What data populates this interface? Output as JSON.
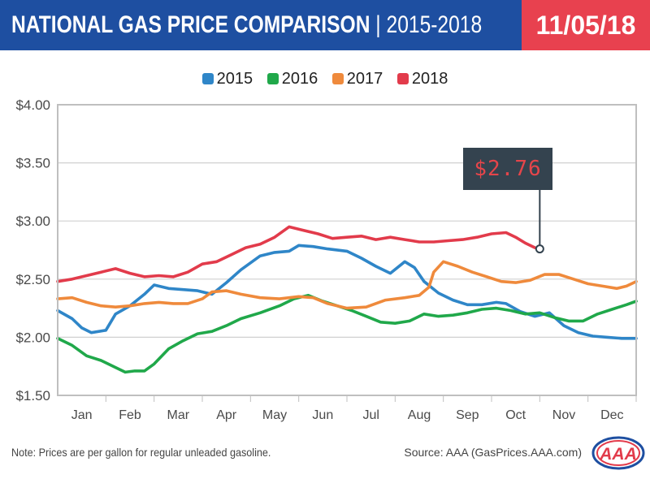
{
  "header": {
    "title_bold": "NATIONAL GAS PRICE COMPARISON",
    "title_sep": " | ",
    "title_years": "2015-2018",
    "date": "11/05/18",
    "colors": {
      "left": "#1e4fa1",
      "right": "#e8414f"
    }
  },
  "legend": {
    "items": [
      {
        "label": "2015",
        "color": "#2f86c8"
      },
      {
        "label": "2016",
        "color": "#20a84a"
      },
      {
        "label": "2017",
        "color": "#ef8a3c"
      },
      {
        "label": "2018",
        "color": "#e23b4b"
      }
    ]
  },
  "chart_data": {
    "type": "line",
    "title": "NATIONAL GAS PRICE COMPARISON | 2015-2018",
    "xlabel": "",
    "ylabel": "",
    "x_ticks": [
      "Jan",
      "Feb",
      "Mar",
      "Apr",
      "May",
      "Jun",
      "Jul",
      "Aug",
      "Sep",
      "Oct",
      "Nov",
      "Dec"
    ],
    "y_ticks": [
      "$1.50",
      "$2.00",
      "$2.50",
      "$3.00",
      "$3.50",
      "$4.00"
    ],
    "ylim": [
      1.5,
      4.0
    ],
    "xlim": [
      0,
      12
    ],
    "grid": "horizontal",
    "legend_position": "top",
    "series": [
      {
        "name": "2015",
        "color": "#2f86c8",
        "points": [
          [
            0,
            2.23
          ],
          [
            0.3,
            2.16
          ],
          [
            0.5,
            2.08
          ],
          [
            0.7,
            2.04
          ],
          [
            1.0,
            2.06
          ],
          [
            1.2,
            2.2
          ],
          [
            1.5,
            2.27
          ],
          [
            1.8,
            2.37
          ],
          [
            2.0,
            2.45
          ],
          [
            2.3,
            2.42
          ],
          [
            2.6,
            2.41
          ],
          [
            2.9,
            2.4
          ],
          [
            3.2,
            2.37
          ],
          [
            3.5,
            2.47
          ],
          [
            3.8,
            2.58
          ],
          [
            4.2,
            2.7
          ],
          [
            4.5,
            2.73
          ],
          [
            4.8,
            2.74
          ],
          [
            5.0,
            2.79
          ],
          [
            5.3,
            2.78
          ],
          [
            5.6,
            2.76
          ],
          [
            6.0,
            2.74
          ],
          [
            6.3,
            2.68
          ],
          [
            6.6,
            2.61
          ],
          [
            6.9,
            2.55
          ],
          [
            7.2,
            2.65
          ],
          [
            7.4,
            2.6
          ],
          [
            7.6,
            2.48
          ],
          [
            7.9,
            2.38
          ],
          [
            8.2,
            2.32
          ],
          [
            8.5,
            2.28
          ],
          [
            8.8,
            2.28
          ],
          [
            9.1,
            2.3
          ],
          [
            9.3,
            2.29
          ],
          [
            9.6,
            2.22
          ],
          [
            9.9,
            2.18
          ],
          [
            10.2,
            2.21
          ],
          [
            10.5,
            2.1
          ],
          [
            10.8,
            2.04
          ],
          [
            11.1,
            2.01
          ],
          [
            11.4,
            2.0
          ],
          [
            11.7,
            1.99
          ],
          [
            12.0,
            1.99
          ]
        ]
      },
      {
        "name": "2016",
        "color": "#20a84a",
        "points": [
          [
            0,
            1.99
          ],
          [
            0.3,
            1.93
          ],
          [
            0.6,
            1.84
          ],
          [
            0.9,
            1.8
          ],
          [
            1.2,
            1.74
          ],
          [
            1.4,
            1.7
          ],
          [
            1.6,
            1.71
          ],
          [
            1.8,
            1.71
          ],
          [
            2.0,
            1.77
          ],
          [
            2.3,
            1.9
          ],
          [
            2.6,
            1.97
          ],
          [
            2.9,
            2.03
          ],
          [
            3.2,
            2.05
          ],
          [
            3.5,
            2.1
          ],
          [
            3.8,
            2.16
          ],
          [
            4.2,
            2.21
          ],
          [
            4.6,
            2.27
          ],
          [
            4.9,
            2.33
          ],
          [
            5.2,
            2.36
          ],
          [
            5.5,
            2.31
          ],
          [
            5.8,
            2.27
          ],
          [
            6.1,
            2.23
          ],
          [
            6.4,
            2.18
          ],
          [
            6.7,
            2.13
          ],
          [
            7.0,
            2.12
          ],
          [
            7.3,
            2.14
          ],
          [
            7.6,
            2.2
          ],
          [
            7.9,
            2.18
          ],
          [
            8.2,
            2.19
          ],
          [
            8.5,
            2.21
          ],
          [
            8.8,
            2.24
          ],
          [
            9.1,
            2.25
          ],
          [
            9.4,
            2.23
          ],
          [
            9.7,
            2.2
          ],
          [
            10.0,
            2.21
          ],
          [
            10.3,
            2.17
          ],
          [
            10.6,
            2.14
          ],
          [
            10.9,
            2.14
          ],
          [
            11.2,
            2.2
          ],
          [
            11.5,
            2.24
          ],
          [
            11.8,
            2.28
          ],
          [
            12.0,
            2.31
          ]
        ]
      },
      {
        "name": "2017",
        "color": "#ef8a3c",
        "points": [
          [
            0,
            2.33
          ],
          [
            0.3,
            2.34
          ],
          [
            0.6,
            2.3
          ],
          [
            0.9,
            2.27
          ],
          [
            1.2,
            2.26
          ],
          [
            1.5,
            2.27
          ],
          [
            1.8,
            2.29
          ],
          [
            2.1,
            2.3
          ],
          [
            2.4,
            2.29
          ],
          [
            2.7,
            2.29
          ],
          [
            3.0,
            2.33
          ],
          [
            3.2,
            2.39
          ],
          [
            3.5,
            2.4
          ],
          [
            3.8,
            2.37
          ],
          [
            4.2,
            2.34
          ],
          [
            4.6,
            2.33
          ],
          [
            5.0,
            2.35
          ],
          [
            5.3,
            2.34
          ],
          [
            5.6,
            2.29
          ],
          [
            6.0,
            2.25
          ],
          [
            6.4,
            2.26
          ],
          [
            6.8,
            2.32
          ],
          [
            7.2,
            2.34
          ],
          [
            7.5,
            2.36
          ],
          [
            7.7,
            2.43
          ],
          [
            7.8,
            2.56
          ],
          [
            8.0,
            2.65
          ],
          [
            8.3,
            2.61
          ],
          [
            8.6,
            2.56
          ],
          [
            8.9,
            2.52
          ],
          [
            9.2,
            2.48
          ],
          [
            9.5,
            2.47
          ],
          [
            9.8,
            2.49
          ],
          [
            10.1,
            2.54
          ],
          [
            10.4,
            2.54
          ],
          [
            10.7,
            2.5
          ],
          [
            11.0,
            2.46
          ],
          [
            11.3,
            2.44
          ],
          [
            11.6,
            2.42
          ],
          [
            11.8,
            2.44
          ],
          [
            12.0,
            2.48
          ]
        ]
      },
      {
        "name": "2018",
        "color": "#e23b4b",
        "points": [
          [
            0,
            2.48
          ],
          [
            0.3,
            2.5
          ],
          [
            0.6,
            2.53
          ],
          [
            0.9,
            2.56
          ],
          [
            1.2,
            2.59
          ],
          [
            1.5,
            2.55
          ],
          [
            1.8,
            2.52
          ],
          [
            2.1,
            2.53
          ],
          [
            2.4,
            2.52
          ],
          [
            2.7,
            2.56
          ],
          [
            3.0,
            2.63
          ],
          [
            3.3,
            2.65
          ],
          [
            3.6,
            2.71
          ],
          [
            3.9,
            2.77
          ],
          [
            4.2,
            2.8
          ],
          [
            4.5,
            2.86
          ],
          [
            4.8,
            2.95
          ],
          [
            5.1,
            2.92
          ],
          [
            5.4,
            2.89
          ],
          [
            5.7,
            2.85
          ],
          [
            6.0,
            2.86
          ],
          [
            6.3,
            2.87
          ],
          [
            6.6,
            2.84
          ],
          [
            6.9,
            2.86
          ],
          [
            7.2,
            2.84
          ],
          [
            7.5,
            2.82
          ],
          [
            7.8,
            2.82
          ],
          [
            8.1,
            2.83
          ],
          [
            8.4,
            2.84
          ],
          [
            8.7,
            2.86
          ],
          [
            9.0,
            2.89
          ],
          [
            9.3,
            2.9
          ],
          [
            9.5,
            2.86
          ],
          [
            9.7,
            2.81
          ],
          [
            9.9,
            2.77
          ],
          [
            10.0,
            2.76
          ]
        ]
      }
    ],
    "annotation": {
      "label": "$2.76",
      "x": 10.0,
      "y": 2.76
    }
  },
  "footer": {
    "note": "Note: Prices are per gallon for regular unleaded gasoline.",
    "source": "Source: AAA (GasPrices.AAA.com)",
    "logo_text": "AAA"
  }
}
